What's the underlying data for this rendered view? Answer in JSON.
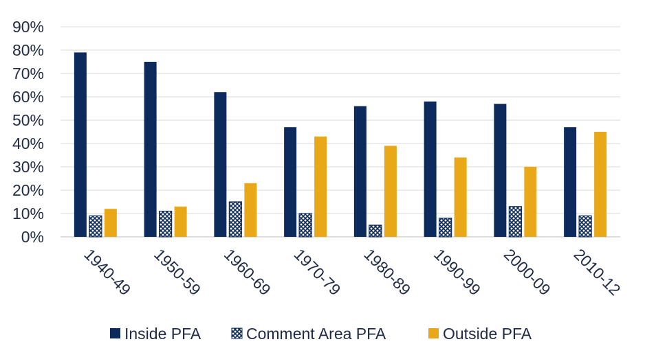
{
  "chart_data": {
    "type": "bar",
    "categories": [
      "1940-49",
      "1950-59",
      "1960-69",
      "1970-79",
      "1980-89",
      "1990-99",
      "2000-09",
      "2010-12"
    ],
    "series": [
      {
        "name": "Inside PFA",
        "values": [
          79,
          75,
          62,
          47,
          56,
          58,
          57,
          47
        ],
        "color": "#0c2a5b",
        "pattern": "solid"
      },
      {
        "name": "Comment Area PFA",
        "values": [
          9,
          11,
          15,
          10,
          5,
          8,
          13,
          9
        ],
        "color": "#0c2a5b",
        "pattern": "checkered"
      },
      {
        "name": "Outside PFA",
        "values": [
          12,
          13,
          23,
          43,
          39,
          34,
          30,
          45
        ],
        "color": "#e8a817",
        "pattern": "solid"
      }
    ],
    "yticks": [
      "0%",
      "10%",
      "20%",
      "30%",
      "40%",
      "50%",
      "60%",
      "70%",
      "80%",
      "90%"
    ],
    "ylim": [
      0,
      90
    ],
    "grid": true,
    "legend_position": "bottom",
    "title": "",
    "xlabel": "",
    "ylabel": ""
  }
}
